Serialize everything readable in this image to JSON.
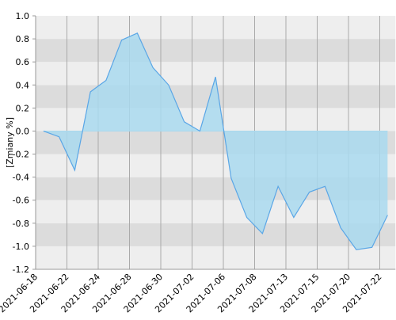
{
  "chart_data": {
    "type": "area",
    "y_label": "[Zmiany %]",
    "categories": [
      "2021-06-18",
      null,
      "2021-06-22",
      null,
      "2021-06-24",
      null,
      "2021-06-28",
      null,
      "2021-06-30",
      null,
      "2021-07-02",
      null,
      "2021-07-06",
      null,
      "2021-07-08",
      null,
      "2021-07-13",
      null,
      "2021-07-15",
      null,
      "2021-07-20",
      null,
      "2021-07-22"
    ],
    "values": [
      0.0,
      -0.05,
      -0.34,
      0.34,
      0.44,
      0.79,
      0.85,
      0.55,
      0.4,
      0.08,
      0.0,
      0.47,
      -0.41,
      -0.75,
      -0.89,
      -0.48,
      -0.75,
      -0.53,
      -0.48,
      -0.84,
      -1.03,
      -1.01,
      -0.73
    ],
    "color": "#5aa6e6",
    "fill": "#a9d9ef",
    "ylim": [
      -1.2,
      1.0
    ],
    "yticks": [
      {
        "value": -1.2,
        "label": "-1.2"
      },
      {
        "value": -1.0,
        "label": "-1.0"
      },
      {
        "value": -0.8,
        "label": "-0.8"
      },
      {
        "value": -0.6,
        "label": "-0.6"
      },
      {
        "value": -0.4,
        "label": "-0.4"
      },
      {
        "value": -0.2,
        "label": "-0.2"
      },
      {
        "value": 0.0,
        "label": "0.0"
      },
      {
        "value": 0.2,
        "label": "0.2"
      },
      {
        "value": 0.4,
        "label": "0.4"
      },
      {
        "value": 0.6,
        "label": "0.6"
      },
      {
        "value": 0.8,
        "label": "0.8"
      },
      {
        "value": 1.0,
        "label": "1.0"
      }
    ],
    "grid": true
  }
}
